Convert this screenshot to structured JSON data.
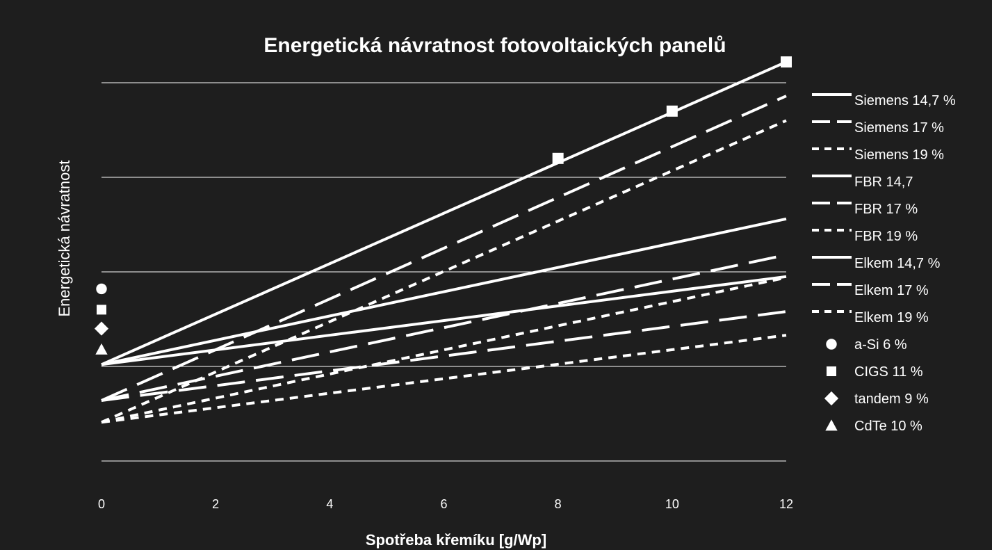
{
  "chart_data": {
    "type": "line",
    "title": "Energetická návratnost fotovoltaických panelů",
    "xlabel": "Spotřeba křemíku [g/Wp]",
    "ylabel": "Energetická návratnost",
    "x_ticks": [
      "0",
      "2",
      "4",
      "6",
      "8",
      "10",
      "12"
    ],
    "xlim": [
      0,
      12
    ],
    "ylim": [
      0,
      4
    ],
    "y_ticks_shown": false,
    "grid": "horizontal",
    "gridlines_y": [
      0,
      1,
      2,
      3,
      4
    ],
    "legend_position": "right",
    "x": [
      0,
      12
    ],
    "series": [
      {
        "name": "Siemens 14,7 %",
        "style": "solid",
        "values": [
          1.02,
          4.22
        ],
        "markers": {
          "shape": "square",
          "x": [
            8,
            10,
            12
          ],
          "y": [
            3.2,
            3.7,
            4.22
          ]
        }
      },
      {
        "name": "Siemens 17 %",
        "style": "long-dash",
        "values": [
          0.64,
          3.86
        ]
      },
      {
        "name": "Siemens 19 %",
        "style": "short-dash",
        "values": [
          0.41,
          3.6
        ]
      },
      {
        "name": "FBR 14,7",
        "style": "solid",
        "values": [
          1.02,
          2.56
        ]
      },
      {
        "name": "FBR 17 %",
        "style": "long-dash",
        "values": [
          0.64,
          2.18
        ]
      },
      {
        "name": "FBR 19 %",
        "style": "short-dash",
        "values": [
          0.41,
          1.94
        ]
      },
      {
        "name": "Elkem 14,7 %",
        "style": "solid",
        "values": [
          1.02,
          1.95
        ]
      },
      {
        "name": "Elkem 17 %",
        "style": "long-dash",
        "values": [
          0.64,
          1.58
        ]
      },
      {
        "name": "Elkem 19 %",
        "style": "short-dash",
        "values": [
          0.41,
          1.33
        ]
      }
    ],
    "points": [
      {
        "name": "a-Si 6 %",
        "marker": "circle",
        "x": 0,
        "y": 1.82
      },
      {
        "name": "CIGS 11 %",
        "marker": "square",
        "x": 0,
        "y": 1.6
      },
      {
        "name": "tandem 9 %",
        "marker": "diamond",
        "x": 0,
        "y": 1.4
      },
      {
        "name": "CdTe 10 %",
        "marker": "triangle",
        "x": 0,
        "y": 1.18
      }
    ],
    "colors": {
      "background": "#1e1e1e",
      "foreground": "#ffffff"
    }
  }
}
